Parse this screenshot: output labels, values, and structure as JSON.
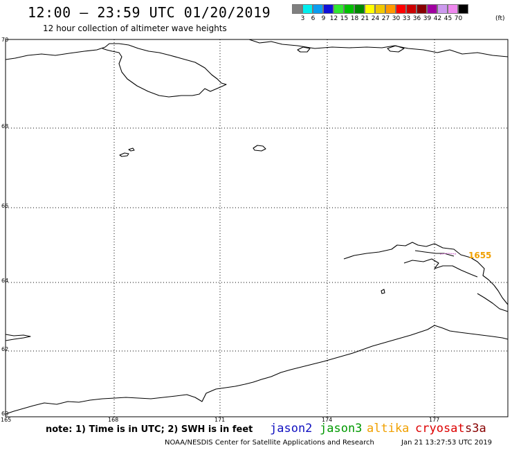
{
  "header": {
    "title": "12:00 – 23:59 UTC 01/20/2019",
    "subtitle": "12 hour collection of altimeter wave heights"
  },
  "color_scale": {
    "unit_label": "(ft)",
    "labels": [
      "3",
      "6",
      "9",
      "12",
      "15",
      "18",
      "21",
      "24",
      "27",
      "30",
      "33",
      "36",
      "39",
      "42",
      "45",
      "70"
    ],
    "colors": [
      "#7f7f7f",
      "#00eeee",
      "#0a9cf0",
      "#1010d8",
      "#30e830",
      "#00c000",
      "#008800",
      "#ffff00",
      "#f0c800",
      "#ff9900",
      "#ff0000",
      "#cc0000",
      "#880000",
      "#a000a0",
      "#cc99ee",
      "#ee88ee",
      "#000000"
    ]
  },
  "map": {
    "lat_labels": [
      "70",
      "68",
      "66",
      "64",
      "62",
      "60"
    ],
    "lon_labels": [
      "165",
      "168",
      "171",
      "174",
      "177"
    ],
    "pass_label": "1655",
    "pass_color": "#f0a000",
    "track_color": "#cc66cc"
  },
  "footer": {
    "note": "note:  1) Time is in UTC; 2) SWH is in feet",
    "satellites": [
      {
        "name": "jason2",
        "color": "#1010c0"
      },
      {
        "name": "jason3",
        "color": "#009900"
      },
      {
        "name": "altika",
        "color": "#f0a000"
      },
      {
        "name": "cryosat",
        "color": "#dd0000"
      },
      {
        "name": "s3a",
        "color": "#880000"
      }
    ],
    "credit": "NOAA/NESDIS Center for Satellite Applications and Research",
    "timestamp": "Jan 21 13:27:53 UTC 2019"
  }
}
